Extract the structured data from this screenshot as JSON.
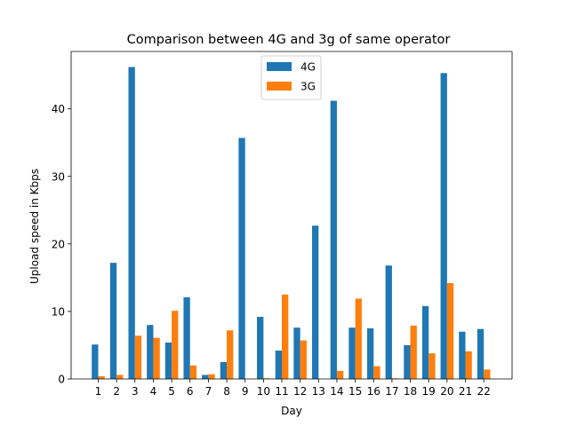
{
  "chart_data": {
    "type": "bar",
    "title": "Comparison between 4G and 3g of same operator",
    "xlabel": "Day",
    "ylabel": "Upload speed in Kbps",
    "categories": [
      "1",
      "2",
      "3",
      "4",
      "5",
      "6",
      "7",
      "8",
      "9",
      "10",
      "11",
      "12",
      "13",
      "14",
      "15",
      "16",
      "17",
      "18",
      "19",
      "20",
      "21",
      "22"
    ],
    "ylim": [
      0,
      48.5
    ],
    "yticks": [
      0,
      10,
      20,
      30,
      40
    ],
    "legend_position": "top-center",
    "grid": false,
    "series": [
      {
        "name": "4G",
        "color": "#1f77b4",
        "values": [
          5.1,
          17.2,
          46.2,
          8.0,
          5.4,
          12.1,
          0.6,
          2.5,
          35.7,
          9.2,
          4.2,
          7.6,
          22.7,
          41.2,
          7.6,
          7.5,
          16.8,
          5.0,
          10.8,
          45.3,
          7.0,
          7.4
        ]
      },
      {
        "name": "3G",
        "color": "#ff7f0e",
        "values": [
          0.4,
          0.6,
          6.4,
          6.1,
          10.1,
          2.0,
          0.7,
          7.2,
          0.0,
          0.1,
          12.5,
          5.7,
          0.0,
          1.2,
          11.9,
          1.9,
          0.1,
          7.9,
          3.8,
          14.2,
          4.1,
          1.4
        ]
      }
    ]
  }
}
